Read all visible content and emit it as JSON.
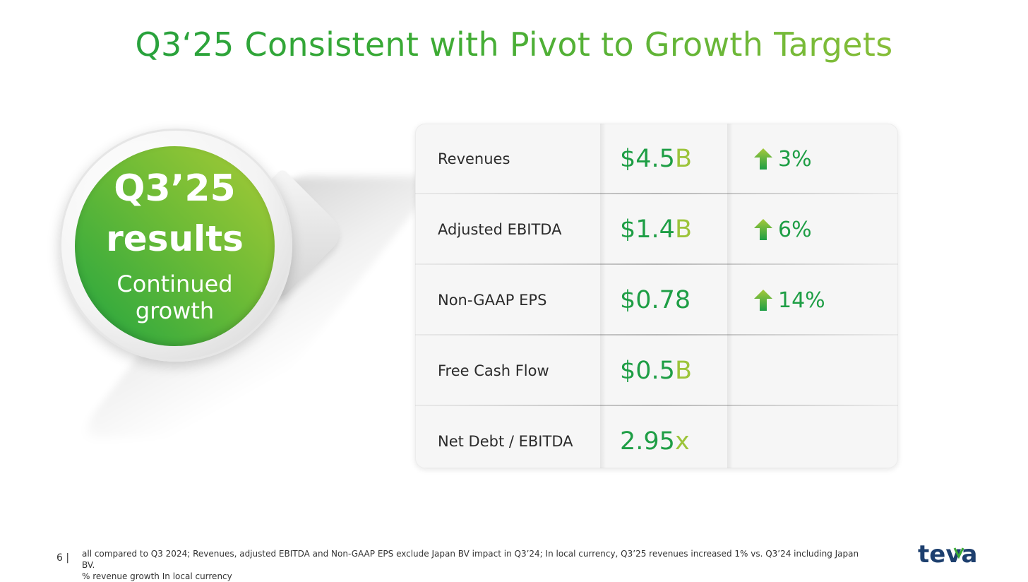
{
  "title": "Q3‘25 Consistent with Pivot to Growth Targets",
  "badge": {
    "line1": "Q3’25",
    "line2": "results",
    "line3a": "Continued",
    "line3b": "growth"
  },
  "metrics": [
    {
      "label": "Revenues",
      "value": "$4.5",
      "unit": "B",
      "change": "3%",
      "arrow": "up-arrow-icon"
    },
    {
      "label": "Adjusted EBITDA",
      "value": "$1.4",
      "unit": "B",
      "change": "6%",
      "arrow": "up-arrow-icon"
    },
    {
      "label": "Non-GAAP EPS",
      "value": "$0.78",
      "unit": "",
      "change": "14%",
      "arrow": "up-arrow-icon"
    },
    {
      "label": "Free Cash Flow",
      "value": "$0.5",
      "unit": "B",
      "change": "",
      "arrow": ""
    },
    {
      "label": "Net Debt / EBITDA",
      "value": "2.95",
      "unit": "x",
      "change": "",
      "arrow": ""
    }
  ],
  "footer": {
    "page_number": "6 |",
    "note_line1": "all compared to Q3 2024; Revenues, adjusted EBITDA and Non-GAAP EPS exclude Japan BV impact in Q3’24; In local currency, Q3’25 revenues increased 1% vs. Q3’24 including Japan BV.",
    "note_line2": "% revenue growth In local currency",
    "logo_text": "teva"
  },
  "colors": {
    "green_dark": "#1e9e45",
    "green_light": "#9cc43a",
    "logo_blue": "#1d3f6e"
  }
}
